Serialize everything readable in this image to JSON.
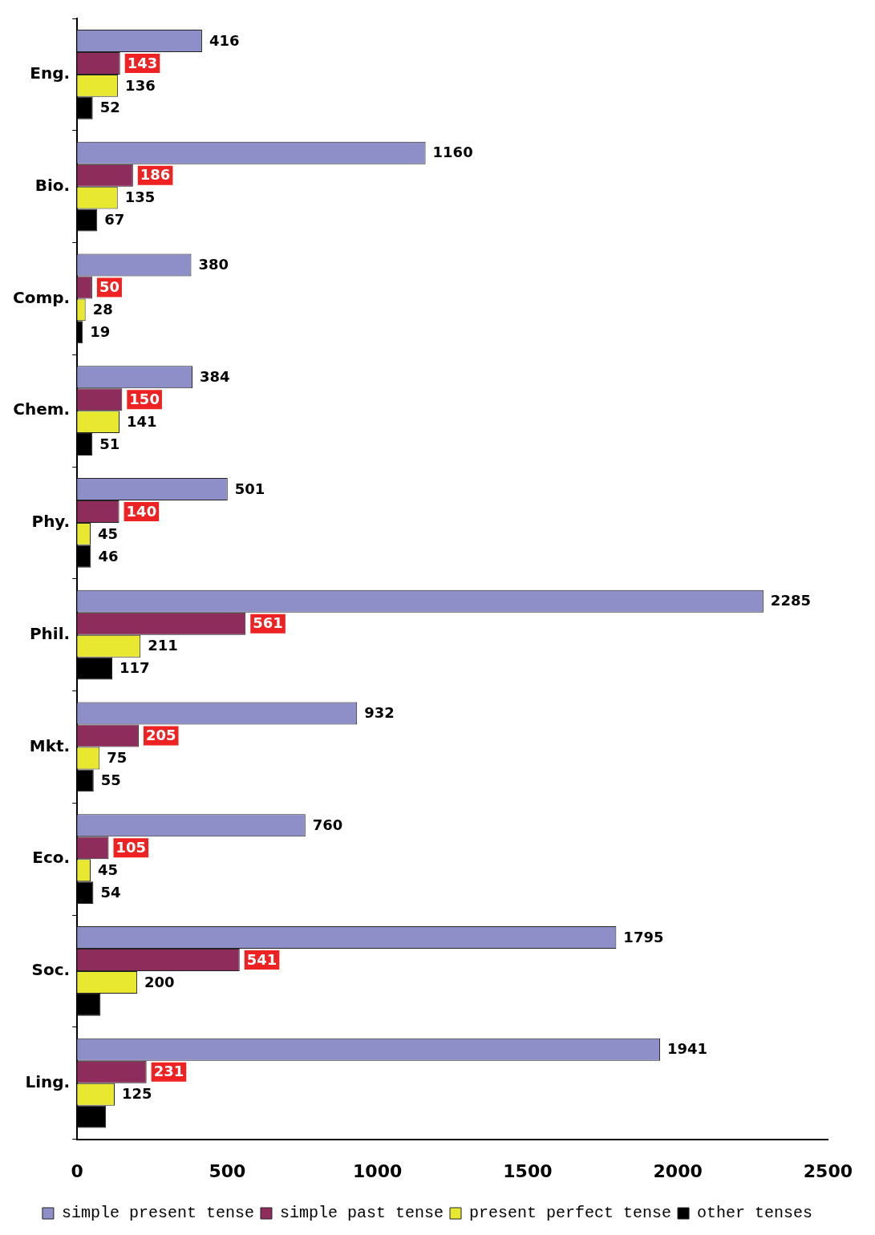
{
  "chart_data": {
    "type": "bar",
    "orientation": "horizontal",
    "categories": [
      "Eng.",
      "Bio.",
      "Comp.",
      "Chem.",
      "Phy.",
      "Phil.",
      "Mkt.",
      "Eco.",
      "Soc.",
      "Ling."
    ],
    "series": [
      {
        "name": "simple present tense",
        "color": "#8e8ec8",
        "values": [
          416,
          1160,
          380,
          384,
          501,
          2285,
          932,
          760,
          1795,
          1941
        ],
        "value_labels": [
          "416",
          "1160",
          "380",
          "384",
          "501",
          "2285",
          "932",
          "760",
          "1795",
          "1941"
        ]
      },
      {
        "name": "simple past tense",
        "color": "#8e2c5c",
        "values": [
          143,
          186,
          50,
          150,
          140,
          561,
          205,
          105,
          541,
          231
        ],
        "value_labels": [
          "143",
          "186",
          "50",
          "150",
          "140",
          "561",
          "205",
          "105",
          "541",
          "231"
        ]
      },
      {
        "name": "present perfect tense",
        "color": "#e8e830",
        "values": [
          136,
          135,
          28,
          141,
          45,
          211,
          75,
          45,
          200,
          125
        ],
        "value_labels": [
          "136",
          "135",
          "28",
          "141",
          "45",
          "211",
          "75",
          "45",
          "200",
          "125"
        ]
      },
      {
        "name": "other tenses",
        "color": "#000000",
        "values": [
          52,
          67,
          19,
          51,
          46,
          117,
          55,
          54,
          78,
          96
        ],
        "value_labels": [
          "52",
          "67",
          "19",
          "51",
          "46",
          "117",
          "55",
          "54",
          null,
          null
        ]
      }
    ],
    "xlim": [
      0,
      2500
    ],
    "xticks": [
      0,
      500,
      1000,
      1500,
      2000,
      2500
    ],
    "grid": false,
    "legend": "bottom"
  }
}
